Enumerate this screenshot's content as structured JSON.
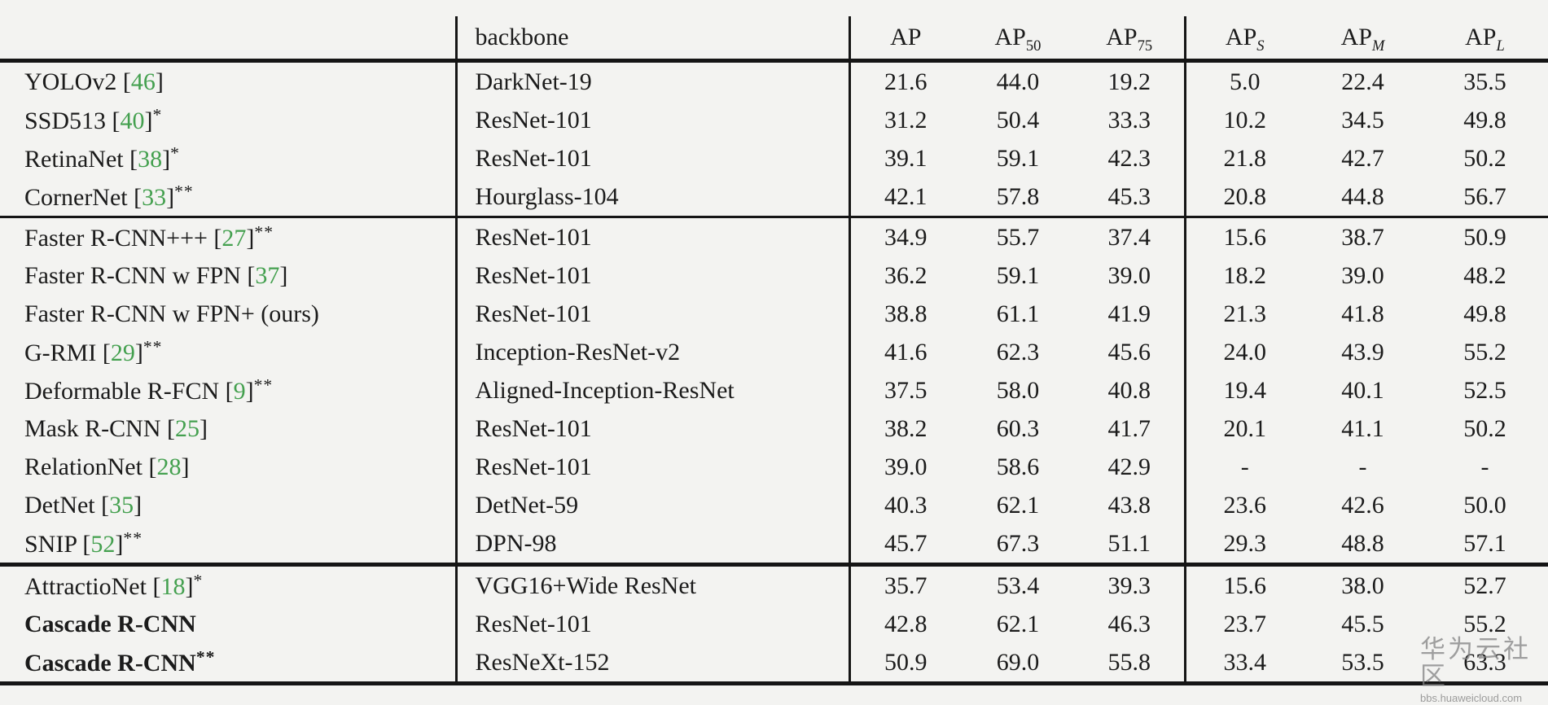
{
  "colors": {
    "page_background": "#f3f3f1",
    "text": "#1b1b1b",
    "rule": "#151515",
    "citation_green": "#44a04f",
    "watermark_gray": "#828282"
  },
  "table": {
    "header": {
      "method": "",
      "backbone": "backbone",
      "metrics": [
        {
          "label": "AP",
          "sub": ""
        },
        {
          "label": "AP",
          "sub": "50"
        },
        {
          "label": "AP",
          "sub": "75"
        },
        {
          "label": "AP",
          "sub": "S"
        },
        {
          "label": "AP",
          "sub": "M"
        },
        {
          "label": "AP",
          "sub": "L"
        }
      ]
    },
    "groups": [
      {
        "rows": [
          {
            "name": "YOLOv2",
            "cite": "46",
            "stars": "",
            "bold": false,
            "backbone": "DarkNet-19",
            "values": [
              "21.6",
              "44.0",
              "19.2",
              "5.0",
              "22.4",
              "35.5"
            ]
          },
          {
            "name": "SSD513",
            "cite": "40",
            "stars": "*",
            "bold": false,
            "backbone": "ResNet-101",
            "values": [
              "31.2",
              "50.4",
              "33.3",
              "10.2",
              "34.5",
              "49.8"
            ]
          },
          {
            "name": "RetinaNet",
            "cite": "38",
            "stars": "*",
            "bold": false,
            "backbone": "ResNet-101",
            "values": [
              "39.1",
              "59.1",
              "42.3",
              "21.8",
              "42.7",
              "50.2"
            ]
          },
          {
            "name": "CornerNet",
            "cite": "33",
            "stars": "**",
            "bold": false,
            "backbone": "Hourglass-104",
            "values": [
              "42.1",
              "57.8",
              "45.3",
              "20.8",
              "44.8",
              "56.7"
            ]
          }
        ]
      },
      {
        "rows": [
          {
            "name": "Faster R-CNN+++",
            "cite": "27",
            "stars": "**",
            "bold": false,
            "backbone": "ResNet-101",
            "values": [
              "34.9",
              "55.7",
              "37.4",
              "15.6",
              "38.7",
              "50.9"
            ]
          },
          {
            "name": "Faster R-CNN w FPN",
            "cite": "37",
            "stars": "",
            "bold": false,
            "backbone": "ResNet-101",
            "values": [
              "36.2",
              "59.1",
              "39.0",
              "18.2",
              "39.0",
              "48.2"
            ]
          },
          {
            "name": "Faster R-CNN w FPN+ (ours)",
            "cite": null,
            "stars": "",
            "bold": false,
            "backbone": "ResNet-101",
            "values": [
              "38.8",
              "61.1",
              "41.9",
              "21.3",
              "41.8",
              "49.8"
            ]
          },
          {
            "name": "G-RMI",
            "cite": "29",
            "stars": "**",
            "bold": false,
            "backbone": "Inception-ResNet-v2",
            "values": [
              "41.6",
              "62.3",
              "45.6",
              "24.0",
              "43.9",
              "55.2"
            ]
          },
          {
            "name": "Deformable R-FCN",
            "cite": "9",
            "stars": "**",
            "bold": false,
            "backbone": "Aligned-Inception-ResNet",
            "values": [
              "37.5",
              "58.0",
              "40.8",
              "19.4",
              "40.1",
              "52.5"
            ]
          },
          {
            "name": "Mask R-CNN",
            "cite": "25",
            "stars": "",
            "bold": false,
            "backbone": "ResNet-101",
            "values": [
              "38.2",
              "60.3",
              "41.7",
              "20.1",
              "41.1",
              "50.2"
            ]
          },
          {
            "name": "RelationNet",
            "cite": "28",
            "stars": "",
            "bold": false,
            "backbone": "ResNet-101",
            "values": [
              "39.0",
              "58.6",
              "42.9",
              "-",
              "-",
              "-"
            ]
          },
          {
            "name": "DetNet",
            "cite": "35",
            "stars": "",
            "bold": false,
            "backbone": "DetNet-59",
            "values": [
              "40.3",
              "62.1",
              "43.8",
              "23.6",
              "42.6",
              "50.0"
            ]
          },
          {
            "name": "SNIP",
            "cite": "52",
            "stars": "**",
            "bold": false,
            "backbone": "DPN-98",
            "values": [
              "45.7",
              "67.3",
              "51.1",
              "29.3",
              "48.8",
              "57.1"
            ]
          }
        ]
      },
      {
        "rows": [
          {
            "name": "AttractioNet",
            "cite": "18",
            "stars": "*",
            "bold": false,
            "backbone": "VGG16+Wide ResNet",
            "values": [
              "35.7",
              "53.4",
              "39.3",
              "15.6",
              "38.0",
              "52.7"
            ]
          },
          {
            "name": "Cascade R-CNN",
            "cite": null,
            "stars": "",
            "bold": true,
            "backbone": "ResNet-101",
            "values": [
              "42.8",
              "62.1",
              "46.3",
              "23.7",
              "45.5",
              "55.2"
            ]
          },
          {
            "name": "Cascade R-CNN",
            "cite": null,
            "stars": "**",
            "bold": true,
            "backbone": "ResNeXt-152",
            "values": [
              "50.9",
              "69.0",
              "55.8",
              "33.4",
              "53.5",
              "63.3"
            ]
          }
        ]
      }
    ]
  },
  "watermark": {
    "title": "华为云社区",
    "subtitle": "bbs.huaweicloud.com"
  }
}
